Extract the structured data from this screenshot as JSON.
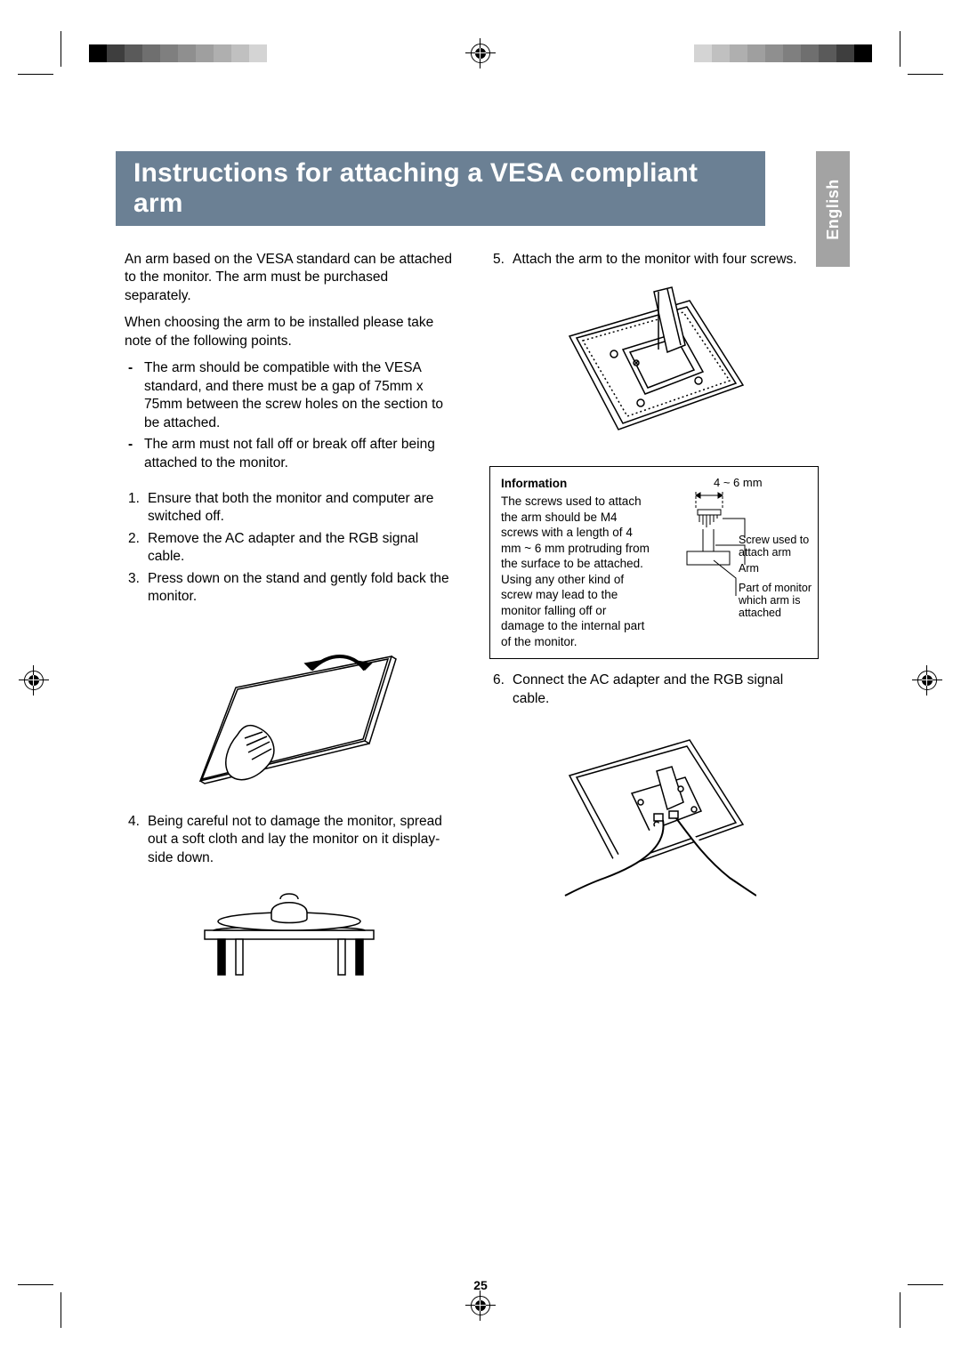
{
  "title": "Instructions for attaching a VESA compliant arm",
  "language_tab": "English",
  "page_number": "25",
  "intro_1": "An arm based on the VESA standard can be attached to the monitor. The arm must be purchased separately.",
  "intro_2": "When choosing the arm to be installed please take note of the following points.",
  "notes": [
    "The arm should be compatible with the VESA standard, and there must be a gap of 75mm x 75mm between the screw holes on the section to be attached.",
    "The arm must not fall off or break off after being attached to the monitor."
  ],
  "steps_left": [
    {
      "n": "1.",
      "t": "Ensure that both the monitor and computer are switched off."
    },
    {
      "n": "2.",
      "t": "Remove the AC adapter and the RGB signal cable."
    },
    {
      "n": "3.",
      "t": "Press down on the stand and gently fold back the monitor."
    },
    {
      "n": "4.",
      "t": "Being careful not to damage the monitor, spread out a soft cloth and lay the monitor on it display-side down."
    }
  ],
  "steps_right": [
    {
      "n": "5.",
      "t": "Attach the arm to the monitor with four screws."
    },
    {
      "n": "6.",
      "t": "Connect the AC adapter and the RGB signal cable."
    }
  ],
  "infobox": {
    "title": "Information",
    "body": "The screws used to attach the arm should be M4 screws with a length of 4 mm ~ 6 mm protruding from the surface to be attached. Using any other kind of screw may lead to the monitor falling off or damage to the internal part of the monitor.",
    "dim_label": "4 ~ 6 mm",
    "label_screw": "Screw used to attach arm",
    "label_arm": "Arm",
    "label_part": "Part of monitor to which arm is attached"
  },
  "colors": {
    "banner": "#6b8094",
    "tab": "#a3a3a3",
    "text": "#000000",
    "colorbar": [
      "#000000",
      "#3e3e3e",
      "#5a5a5a",
      "#6f6f6f",
      "#7f7f7f",
      "#8f8f8f",
      "#9f9f9f",
      "#afafaf",
      "#c0c0c0",
      "#d4d4d4"
    ]
  }
}
